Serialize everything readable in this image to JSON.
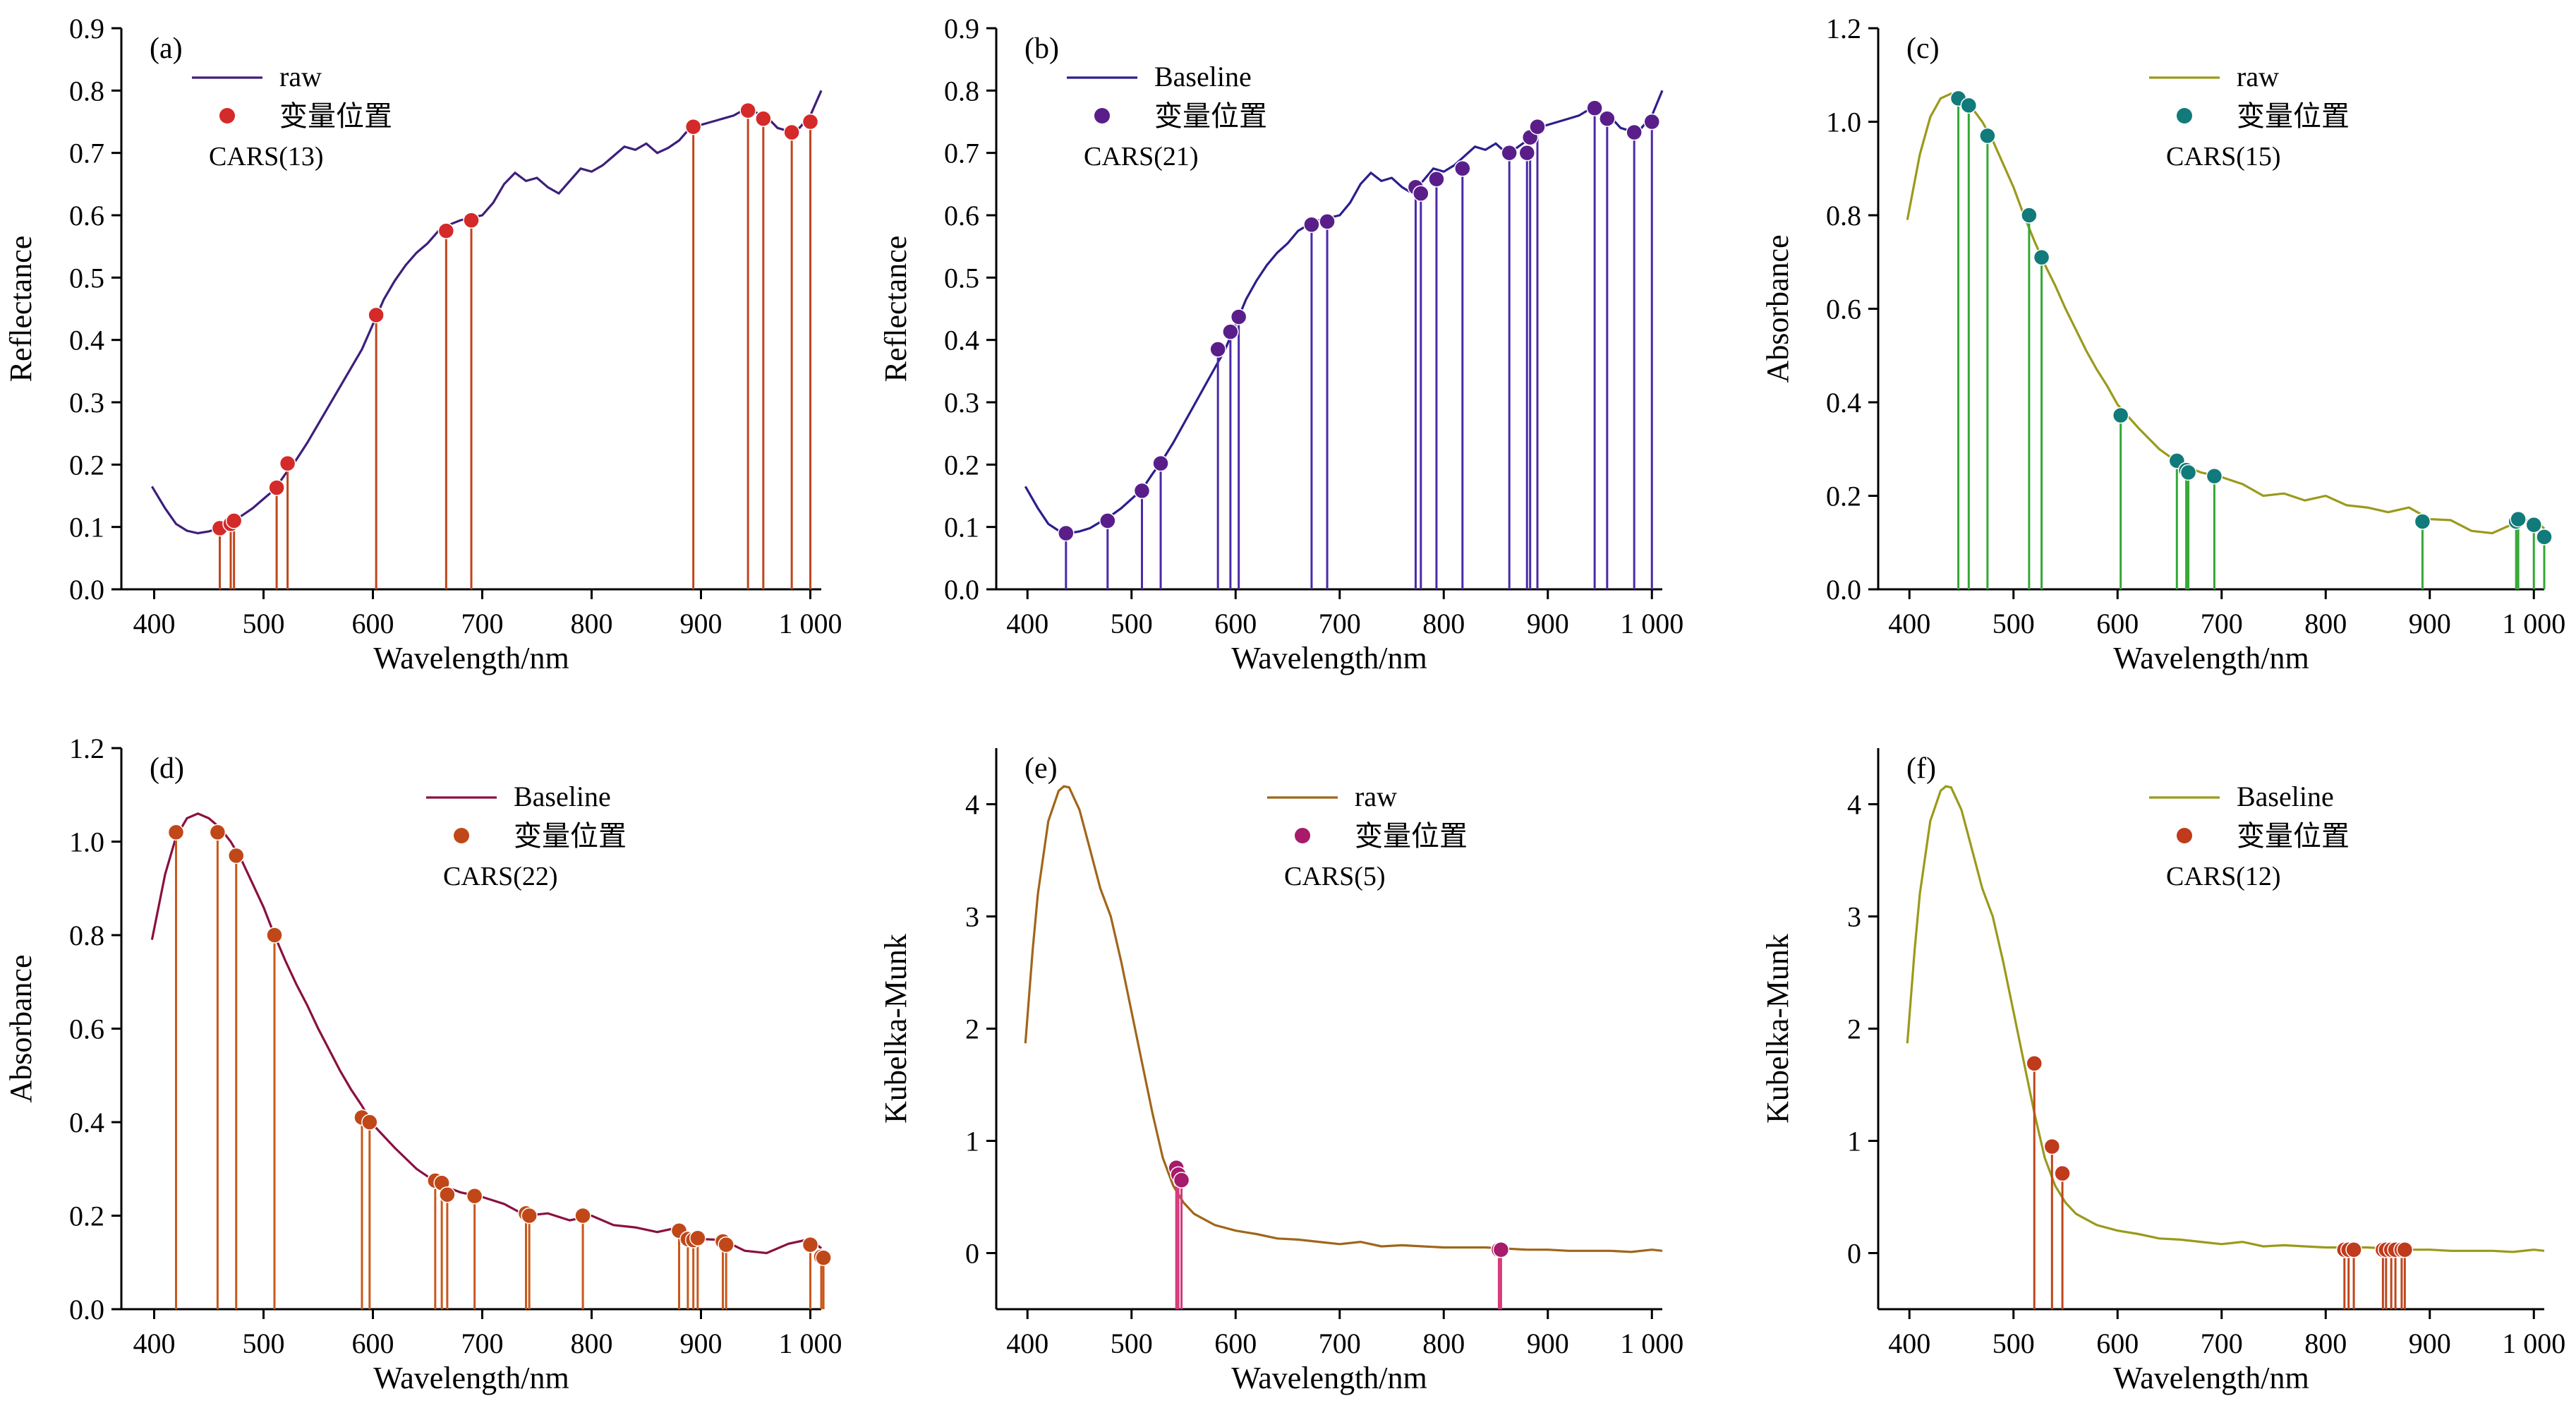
{
  "chart_data": [
    {
      "type": "line",
      "panel_label": "(a)",
      "xlabel": "Wavelength/nm",
      "ylabel": "Reflectance",
      "xlim": [
        370,
        1010
      ],
      "ylim": [
        0,
        0.9
      ],
      "xticks": [
        400,
        500,
        600,
        700,
        800,
        900,
        1000
      ],
      "xtick_labels": [
        "400",
        "500",
        "600",
        "700",
        "800",
        "900",
        "1 000"
      ],
      "yticks": [
        0,
        0.1,
        0.2,
        0.3,
        0.4,
        0.5,
        0.6,
        0.7,
        0.8,
        0.9
      ],
      "ytick_labels": [
        "0.0",
        "0.1",
        "0.2",
        "0.3",
        "0.4",
        "0.5",
        "0.6",
        "0.7",
        "0.8",
        "0.9"
      ],
      "legend": {
        "line_label": "raw",
        "marker_label": "变量位置",
        "note": "CARS(13)",
        "position": "top-left"
      },
      "colors": {
        "line": "#3d1f7a",
        "stem": "#c0461c",
        "marker": "#d42a2a"
      },
      "series": [
        {
          "x": [
            398,
            410,
            420,
            430,
            440,
            450,
            460,
            470,
            480,
            490,
            500,
            510,
            520,
            530,
            540,
            550,
            560,
            570,
            580,
            590,
            600,
            610,
            620,
            630,
            640,
            650,
            660,
            670,
            680,
            690,
            700,
            710,
            720,
            730,
            740,
            750,
            760,
            770,
            780,
            790,
            800,
            810,
            820,
            830,
            840,
            850,
            860,
            870,
            880,
            890,
            900,
            910,
            920,
            930,
            940,
            950,
            960,
            970,
            980,
            990,
            1000,
            1010
          ],
          "y": [
            0.165,
            0.13,
            0.105,
            0.094,
            0.09,
            0.093,
            0.098,
            0.108,
            0.118,
            0.13,
            0.145,
            0.16,
            0.185,
            0.208,
            0.235,
            0.265,
            0.295,
            0.325,
            0.355,
            0.385,
            0.425,
            0.465,
            0.495,
            0.52,
            0.54,
            0.555,
            0.575,
            0.585,
            0.592,
            0.596,
            0.6,
            0.62,
            0.65,
            0.668,
            0.655,
            0.66,
            0.645,
            0.635,
            0.655,
            0.675,
            0.67,
            0.68,
            0.695,
            0.71,
            0.705,
            0.715,
            0.7,
            0.708,
            0.72,
            0.74,
            0.745,
            0.75,
            0.755,
            0.76,
            0.77,
            0.765,
            0.758,
            0.74,
            0.735,
            0.74,
            0.76,
            0.8
          ]
        }
      ],
      "selected_x": [
        460,
        470,
        473,
        512,
        522,
        603,
        667,
        690,
        893,
        943,
        957,
        983,
        1000
      ],
      "selected_y": [
        0.098,
        0.105,
        0.11,
        0.163,
        0.202,
        0.44,
        0.575,
        0.592,
        0.742,
        0.768,
        0.755,
        0.733,
        0.75
      ]
    },
    {
      "type": "line",
      "panel_label": "(b)",
      "xlabel": "Wavelength/nm",
      "ylabel": "Reflectance",
      "xlim": [
        370,
        1010
      ],
      "ylim": [
        0,
        0.9
      ],
      "xticks": [
        400,
        500,
        600,
        700,
        800,
        900,
        1000
      ],
      "xtick_labels": [
        "400",
        "500",
        "600",
        "700",
        "800",
        "900",
        "1 000"
      ],
      "yticks": [
        0,
        0.1,
        0.2,
        0.3,
        0.4,
        0.5,
        0.6,
        0.7,
        0.8,
        0.9
      ],
      "ytick_labels": [
        "0.0",
        "0.1",
        "0.2",
        "0.3",
        "0.4",
        "0.5",
        "0.6",
        "0.7",
        "0.8",
        "0.9"
      ],
      "legend": {
        "line_label": "Baseline",
        "marker_label": "变量位置",
        "note": "CARS(21)",
        "position": "top-left"
      },
      "colors": {
        "line": "#2b1f8c",
        "stem": "#4a2aa8",
        "marker": "#5a1e8a"
      },
      "series": [
        {
          "x": [
            398,
            410,
            420,
            430,
            440,
            450,
            460,
            470,
            480,
            490,
            500,
            510,
            520,
            530,
            540,
            550,
            560,
            570,
            580,
            590,
            600,
            610,
            620,
            630,
            640,
            650,
            660,
            670,
            680,
            690,
            700,
            710,
            720,
            730,
            740,
            750,
            760,
            770,
            780,
            790,
            800,
            810,
            820,
            830,
            840,
            850,
            860,
            870,
            880,
            890,
            900,
            910,
            920,
            930,
            940,
            950,
            960,
            970,
            980,
            990,
            1000,
            1010
          ],
          "y": [
            0.165,
            0.13,
            0.105,
            0.094,
            0.09,
            0.093,
            0.098,
            0.108,
            0.118,
            0.13,
            0.145,
            0.16,
            0.185,
            0.208,
            0.235,
            0.265,
            0.295,
            0.325,
            0.355,
            0.385,
            0.425,
            0.465,
            0.495,
            0.52,
            0.54,
            0.555,
            0.575,
            0.585,
            0.592,
            0.596,
            0.6,
            0.62,
            0.65,
            0.668,
            0.655,
            0.66,
            0.645,
            0.635,
            0.655,
            0.675,
            0.67,
            0.68,
            0.695,
            0.71,
            0.705,
            0.715,
            0.7,
            0.708,
            0.72,
            0.74,
            0.745,
            0.75,
            0.755,
            0.76,
            0.77,
            0.765,
            0.758,
            0.74,
            0.735,
            0.74,
            0.76,
            0.8
          ]
        }
      ],
      "selected_x": [
        437,
        477,
        510,
        528,
        583,
        595,
        603,
        673,
        688,
        773,
        778,
        793,
        818,
        863,
        880,
        883,
        890,
        945,
        957,
        983,
        1000
      ],
      "selected_y": [
        0.09,
        0.11,
        0.158,
        0.202,
        0.385,
        0.413,
        0.437,
        0.585,
        0.59,
        0.645,
        0.635,
        0.658,
        0.675,
        0.7,
        0.7,
        0.725,
        0.742,
        0.772,
        0.755,
        0.733,
        0.75
      ]
    },
    {
      "type": "line",
      "panel_label": "(c)",
      "xlabel": "Wavelength/nm",
      "ylabel": "Absorbance",
      "xlim": [
        370,
        1010
      ],
      "ylim": [
        0,
        1.2
      ],
      "xticks": [
        400,
        500,
        600,
        700,
        800,
        900,
        1000
      ],
      "xtick_labels": [
        "400",
        "500",
        "600",
        "700",
        "800",
        "900",
        "1 000"
      ],
      "yticks": [
        0,
        0.2,
        0.4,
        0.6,
        0.8,
        1.0,
        1.2
      ],
      "ytick_labels": [
        "0.0",
        "0.2",
        "0.4",
        "0.6",
        "0.8",
        "1.0",
        "1.2"
      ],
      "legend": {
        "line_label": "raw",
        "marker_label": "变量位置",
        "note": "CARS(15)",
        "position": "top-right"
      },
      "colors": {
        "line": "#9a9a1c",
        "stem": "#35a835",
        "marker": "#117a7a"
      },
      "series": [
        {
          "x": [
            398,
            410,
            420,
            430,
            440,
            450,
            460,
            470,
            480,
            490,
            500,
            510,
            520,
            530,
            540,
            550,
            560,
            570,
            580,
            590,
            600,
            620,
            640,
            660,
            680,
            700,
            720,
            740,
            760,
            780,
            800,
            820,
            840,
            860,
            880,
            900,
            920,
            940,
            960,
            980,
            1000,
            1010
          ],
          "y": [
            0.79,
            0.93,
            1.01,
            1.05,
            1.06,
            1.05,
            1.03,
            1.0,
            0.96,
            0.91,
            0.86,
            0.8,
            0.745,
            0.695,
            0.65,
            0.6,
            0.555,
            0.51,
            0.47,
            0.435,
            0.395,
            0.345,
            0.3,
            0.268,
            0.25,
            0.24,
            0.225,
            0.2,
            0.205,
            0.19,
            0.2,
            0.18,
            0.175,
            0.165,
            0.175,
            0.15,
            0.148,
            0.125,
            0.12,
            0.14,
            0.15,
            0.13
          ]
        }
      ],
      "selected_x": [
        447,
        457,
        475,
        515,
        527,
        603,
        657,
        666,
        668,
        693,
        893,
        983,
        985,
        1000,
        1010
      ],
      "selected_y": [
        1.05,
        1.035,
        0.97,
        0.8,
        0.71,
        0.372,
        0.275,
        0.255,
        0.25,
        0.242,
        0.145,
        0.145,
        0.15,
        0.138,
        0.112
      ]
    },
    {
      "type": "line",
      "panel_label": "(d)",
      "xlabel": "Wavelength/nm",
      "ylabel": "Absorbance",
      "xlim": [
        370,
        1010
      ],
      "ylim": [
        0,
        1.2
      ],
      "xticks": [
        400,
        500,
        600,
        700,
        800,
        900,
        1000
      ],
      "xtick_labels": [
        "400",
        "500",
        "600",
        "700",
        "800",
        "900",
        "1 000"
      ],
      "yticks": [
        0,
        0.2,
        0.4,
        0.6,
        0.8,
        1.0,
        1.2
      ],
      "ytick_labels": [
        "0.0",
        "0.2",
        "0.4",
        "0.6",
        "0.8",
        "1.0",
        "1.2"
      ],
      "legend": {
        "line_label": "Baseline",
        "marker_label": "变量位置",
        "note": "CARS(22)",
        "position": "top-right"
      },
      "colors": {
        "line": "#8a1040",
        "stem": "#c8581c",
        "marker": "#c04818"
      },
      "series": [
        {
          "x": [
            398,
            410,
            420,
            430,
            440,
            450,
            460,
            470,
            480,
            490,
            500,
            510,
            520,
            530,
            540,
            550,
            560,
            570,
            580,
            590,
            600,
            620,
            640,
            660,
            680,
            700,
            720,
            740,
            760,
            780,
            800,
            820,
            840,
            860,
            880,
            900,
            920,
            940,
            960,
            980,
            1000,
            1010
          ],
          "y": [
            0.79,
            0.93,
            1.01,
            1.05,
            1.06,
            1.05,
            1.03,
            1.0,
            0.96,
            0.91,
            0.86,
            0.8,
            0.745,
            0.695,
            0.65,
            0.6,
            0.555,
            0.51,
            0.47,
            0.435,
            0.395,
            0.345,
            0.3,
            0.268,
            0.25,
            0.24,
            0.225,
            0.2,
            0.205,
            0.19,
            0.2,
            0.18,
            0.175,
            0.165,
            0.175,
            0.15,
            0.148,
            0.125,
            0.12,
            0.14,
            0.15,
            0.13
          ]
        }
      ],
      "selected_x": [
        420,
        458,
        475,
        510,
        590,
        597,
        657,
        663,
        668,
        693,
        740,
        743,
        792,
        880,
        888,
        893,
        897,
        920,
        923,
        1000,
        1010,
        1012
      ],
      "selected_y": [
        1.02,
        1.02,
        0.97,
        0.8,
        0.41,
        0.4,
        0.275,
        0.27,
        0.245,
        0.242,
        0.205,
        0.2,
        0.2,
        0.168,
        0.15,
        0.148,
        0.152,
        0.145,
        0.138,
        0.138,
        0.112,
        0.11
      ]
    },
    {
      "type": "line",
      "panel_label": "(e)",
      "xlabel": "Wavelength/nm",
      "ylabel": "Kubelka-Munk",
      "xlim": [
        370,
        1010
      ],
      "ylim": [
        -0.5,
        4.5
      ],
      "xticks": [
        400,
        500,
        600,
        700,
        800,
        900,
        1000
      ],
      "xtick_labels": [
        "400",
        "500",
        "600",
        "700",
        "800",
        "900",
        "1 000"
      ],
      "yticks": [
        0,
        1,
        2,
        3,
        4
      ],
      "ytick_labels": [
        "0",
        "1",
        "2",
        "3",
        "4"
      ],
      "legend": {
        "line_label": "raw",
        "marker_label": "变量位置",
        "note": "CARS(5)",
        "position": "top-right"
      },
      "colors": {
        "line": "#a0661a",
        "stem": "#d43a7a",
        "marker": "#a81a6a"
      },
      "series": [
        {
          "x": [
            398,
            405,
            410,
            420,
            430,
            435,
            440,
            450,
            460,
            470,
            480,
            490,
            500,
            510,
            520,
            530,
            540,
            550,
            560,
            570,
            580,
            600,
            620,
            640,
            660,
            680,
            700,
            720,
            740,
            760,
            780,
            800,
            820,
            840,
            860,
            880,
            900,
            920,
            940,
            960,
            980,
            1000,
            1010
          ],
          "y": [
            1.87,
            2.7,
            3.2,
            3.85,
            4.12,
            4.16,
            4.15,
            3.95,
            3.6,
            3.25,
            3.0,
            2.6,
            2.15,
            1.7,
            1.25,
            0.85,
            0.6,
            0.45,
            0.35,
            0.3,
            0.25,
            0.2,
            0.17,
            0.13,
            0.12,
            0.1,
            0.08,
            0.1,
            0.06,
            0.07,
            0.06,
            0.05,
            0.05,
            0.05,
            0.04,
            0.03,
            0.03,
            0.02,
            0.02,
            0.02,
            0.01,
            0.03,
            0.02
          ]
        }
      ],
      "selected_x": [
        543,
        545,
        548,
        853,
        855
      ],
      "selected_y": [
        0.76,
        0.7,
        0.65,
        0.03,
        0.03
      ]
    },
    {
      "type": "line",
      "panel_label": "(f)",
      "xlabel": "Wavelength/nm",
      "ylabel": "Kubelka-Munk",
      "xlim": [
        370,
        1010
      ],
      "ylim": [
        -0.5,
        4.5
      ],
      "xticks": [
        400,
        500,
        600,
        700,
        800,
        900,
        1000
      ],
      "xtick_labels": [
        "400",
        "500",
        "600",
        "700",
        "800",
        "900",
        "1 000"
      ],
      "yticks": [
        0,
        1,
        2,
        3,
        4
      ],
      "ytick_labels": [
        "0",
        "1",
        "2",
        "3",
        "4"
      ],
      "legend": {
        "line_label": "Baseline",
        "marker_label": "变量位置",
        "note": "CARS(12)",
        "position": "top-right"
      },
      "colors": {
        "line": "#9a9a1c",
        "stem": "#c0461c",
        "marker": "#c03a1c"
      },
      "series": [
        {
          "x": [
            398,
            405,
            410,
            420,
            430,
            435,
            440,
            450,
            460,
            470,
            480,
            490,
            500,
            510,
            520,
            530,
            540,
            550,
            560,
            570,
            580,
            600,
            620,
            640,
            660,
            680,
            700,
            720,
            740,
            760,
            780,
            800,
            820,
            840,
            860,
            880,
            900,
            920,
            940,
            960,
            980,
            1000,
            1010
          ],
          "y": [
            1.87,
            2.7,
            3.2,
            3.85,
            4.12,
            4.16,
            4.15,
            3.95,
            3.6,
            3.25,
            3.0,
            2.6,
            2.15,
            1.7,
            1.25,
            0.85,
            0.6,
            0.45,
            0.35,
            0.3,
            0.25,
            0.2,
            0.17,
            0.13,
            0.12,
            0.1,
            0.08,
            0.1,
            0.06,
            0.07,
            0.06,
            0.05,
            0.05,
            0.05,
            0.04,
            0.03,
            0.03,
            0.02,
            0.02,
            0.02,
            0.01,
            0.03,
            0.02
          ]
        }
      ],
      "selected_x": [
        520,
        537,
        547,
        818,
        822,
        827,
        855,
        858,
        863,
        867,
        873,
        876
      ],
      "selected_y": [
        1.69,
        0.95,
        0.71,
        0.03,
        0.03,
        0.03,
        0.03,
        0.03,
        0.03,
        0.03,
        0.03,
        0.03
      ]
    }
  ]
}
